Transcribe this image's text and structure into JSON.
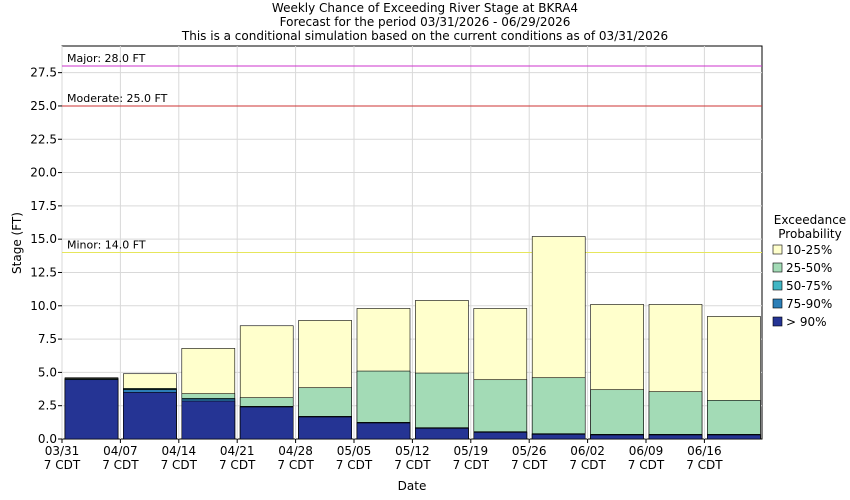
{
  "chart_data": {
    "type": "bar",
    "title_lines": [
      "Weekly Chance of Exceeding River Stage at BKRA4",
      "Forecast for the period 03/31/2026 - 06/29/2026",
      "This is a conditional simulation based on the current conditions as of 03/31/2026"
    ],
    "xlabel": "Date",
    "ylabel": "Stage (FT)",
    "ylim": [
      0,
      29.5
    ],
    "yticks": [
      "0.0",
      "2.5",
      "5.0",
      "7.5",
      "10.0",
      "12.5",
      "15.0",
      "17.5",
      "20.0",
      "22.5",
      "25.0",
      "27.5"
    ],
    "ytick_values": [
      0,
      2.5,
      5,
      7.5,
      10,
      12.5,
      15,
      17.5,
      20,
      22.5,
      25,
      27.5
    ],
    "xtick_dates": [
      "03/31",
      "04/07",
      "04/14",
      "04/21",
      "04/28",
      "05/05",
      "05/12",
      "05/19",
      "05/26",
      "06/02",
      "06/09",
      "06/16"
    ],
    "xtick_tz": "7 CDT",
    "thresholds": [
      {
        "label": "Major: 28.0 FT",
        "value": 28.0,
        "color": "#cc33cc"
      },
      {
        "label": "Moderate: 25.0 FT",
        "value": 25.0,
        "color": "#cc3333"
      },
      {
        "label": "Minor: 14.0 FT",
        "value": 14.0,
        "color": "#e6e65c"
      }
    ],
    "legend_title": [
      "Exceedance",
      "Probability"
    ],
    "legend_position": "right",
    "series": [
      {
        "name": "10-25%",
        "color": "#ffffcc",
        "values": [
          4.6,
          4.9,
          6.8,
          8.5,
          8.9,
          9.8,
          10.4,
          9.8,
          15.2,
          10.1,
          10.1,
          9.2
        ]
      },
      {
        "name": "25-50%",
        "color": "#a3dbb6",
        "values": [
          4.55,
          3.8,
          3.4,
          3.1,
          3.85,
          5.1,
          4.95,
          4.45,
          4.6,
          3.7,
          3.55,
          2.9
        ]
      },
      {
        "name": "50-75%",
        "color": "#41b6c4",
        "values": [
          4.5,
          3.75,
          3.05,
          2.45,
          1.7,
          1.25,
          0.85,
          0.55,
          0.4,
          0.35,
          0.35,
          0.35
        ]
      },
      {
        "name": "75-90%",
        "color": "#2c7fb8",
        "values": [
          4.5,
          3.7,
          3.0,
          2.42,
          1.68,
          1.22,
          0.82,
          0.52,
          0.38,
          0.32,
          0.32,
          0.32
        ]
      },
      {
        "name": "> 90%",
        "color": "#253494",
        "values": [
          4.45,
          3.5,
          2.85,
          2.4,
          1.65,
          1.2,
          0.8,
          0.5,
          0.35,
          0.3,
          0.3,
          0.3
        ]
      }
    ]
  }
}
